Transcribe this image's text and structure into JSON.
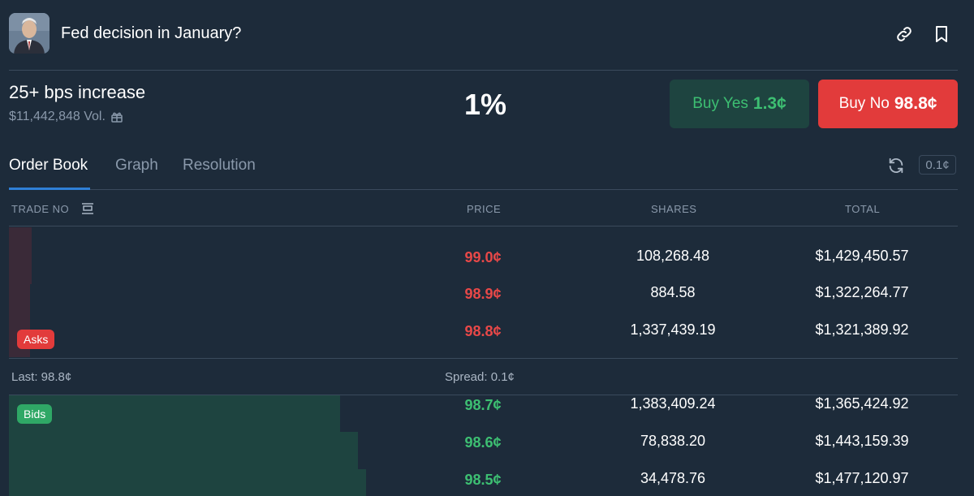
{
  "header": {
    "title": "Fed decision in January?",
    "avatar_icon": "person-portrait-icon",
    "link_icon": "link-icon",
    "bookmark_icon": "bookmark-icon"
  },
  "outcome": {
    "name": "25+ bps increase",
    "volume": "$11,442,848 Vol.",
    "volume_icon": "gift-icon",
    "probability": "1%",
    "buy_yes": {
      "label": "Buy Yes",
      "price": "1.3¢"
    },
    "buy_no": {
      "label": "Buy No",
      "price": "98.8¢"
    }
  },
  "tabs": [
    {
      "label": "Order Book",
      "active": true
    },
    {
      "label": "Graph",
      "active": false
    },
    {
      "label": "Resolution",
      "active": false
    }
  ],
  "tick_size": "0.1¢",
  "columns": {
    "trade": "TRADE NO",
    "price": "PRICE",
    "shares": "SHARES",
    "total": "TOTAL"
  },
  "asks_label": "Asks",
  "bids_label": "Bids",
  "asks": [
    {
      "price": "99.0¢",
      "shares": "108,268.48",
      "total": "$1,429,450.57"
    },
    {
      "price": "98.9¢",
      "shares": "884.58",
      "total": "$1,322,264.77"
    },
    {
      "price": "98.8¢",
      "shares": "1,337,439.19",
      "total": "$1,321,389.92"
    }
  ],
  "last": "Last: 98.8¢",
  "spread": "Spread: 0.1¢",
  "bids": [
    {
      "price": "98.7¢",
      "shares": "1,383,409.24",
      "total": "$1,365,424.92"
    },
    {
      "price": "98.6¢",
      "shares": "78,838.20",
      "total": "$1,443,159.39"
    },
    {
      "price": "98.5¢",
      "shares": "34,478.76",
      "total": "$1,477,120.97"
    }
  ],
  "colors": {
    "background": "#1d2b3a",
    "ask": "#e84848",
    "bid": "#3dbf72",
    "accent": "#2f7fd6"
  }
}
